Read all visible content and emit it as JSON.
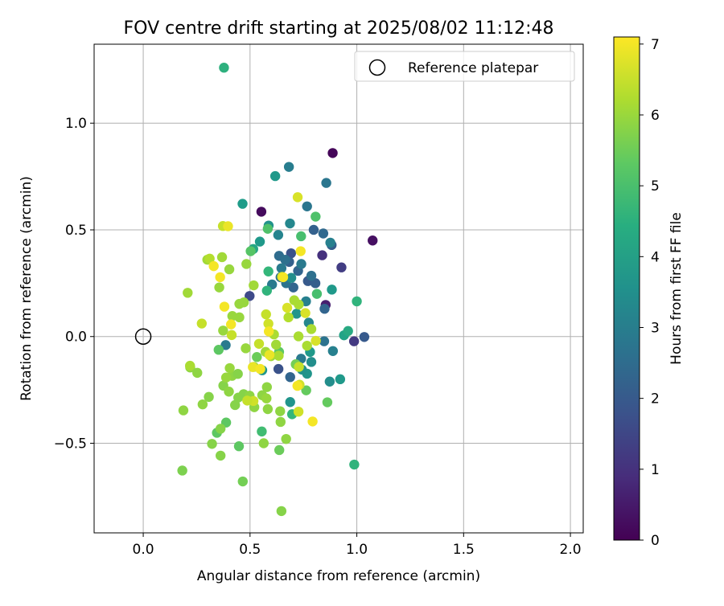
{
  "chart_data": {
    "type": "scatter",
    "title": "FOV centre drift starting at 2025/08/02 11:12:48",
    "xlabel": "Angular distance from reference (arcmin)",
    "ylabel": "Rotation from reference (arcmin)",
    "xlim": [
      -0.23,
      2.06
    ],
    "ylim": [
      -0.92,
      1.37
    ],
    "xticks": [
      0.0,
      0.5,
      1.0,
      1.5,
      2.0
    ],
    "xtick_labels": [
      "0.0",
      "0.5",
      "1.0",
      "1.5",
      "2.0"
    ],
    "yticks": [
      -0.5,
      0.0,
      0.5,
      1.0
    ],
    "ytick_labels": [
      "−0.5",
      "0.0",
      "0.5",
      "1.0"
    ],
    "grid": true,
    "legend": {
      "label": "Reference platepar",
      "placement": "top-right"
    },
    "reference_point": {
      "x": 0.0,
      "y": 0.0
    },
    "colorbar": {
      "label": "Hours from first FF file",
      "colormap": "viridis",
      "range": [
        0,
        7.1
      ],
      "ticks": [
        0,
        1,
        2,
        3,
        4,
        5,
        6,
        7
      ],
      "tick_labels": [
        "0",
        "1",
        "2",
        "3",
        "4",
        "5",
        "6",
        "7"
      ]
    },
    "points": [
      [
        0.378,
        1.26,
        4.5
      ],
      [
        0.887,
        0.86,
        0.1
      ],
      [
        0.553,
        0.585,
        0.2
      ],
      [
        1.074,
        0.45,
        0.3
      ],
      [
        0.854,
        0.148,
        0.6
      ],
      [
        0.838,
        0.381,
        1.0
      ],
      [
        0.928,
        0.324,
        1.3
      ],
      [
        0.987,
        -0.022,
        1.2
      ],
      [
        0.498,
        0.19,
        1.6
      ],
      [
        0.633,
        -0.152,
        1.8
      ],
      [
        1.035,
        -0.002,
        2.0
      ],
      [
        0.692,
        0.39,
        1.8
      ],
      [
        0.771,
        0.26,
        2.0
      ],
      [
        0.806,
        0.25,
        2.1
      ],
      [
        0.882,
        0.429,
        2.1
      ],
      [
        0.849,
        0.13,
        2.3
      ],
      [
        0.843,
        0.483,
        2.4
      ],
      [
        0.798,
        0.5,
        2.2
      ],
      [
        0.725,
        0.308,
        2.3
      ],
      [
        0.683,
        0.35,
        2.2
      ],
      [
        0.636,
        0.378,
        2.5
      ],
      [
        0.643,
        0.278,
        2.6
      ],
      [
        0.688,
        -0.19,
        2.3
      ],
      [
        0.787,
        0.285,
        2.6
      ],
      [
        0.703,
        0.23,
        2.3
      ],
      [
        0.669,
        0.25,
        2.7
      ],
      [
        0.74,
        0.34,
        2.9
      ],
      [
        0.665,
        0.36,
        2.6
      ],
      [
        0.647,
        0.32,
        2.9
      ],
      [
        0.857,
        0.72,
        2.8
      ],
      [
        0.767,
        0.61,
        2.8
      ],
      [
        0.682,
        0.795,
        3.0
      ],
      [
        0.876,
        0.44,
        3.1
      ],
      [
        0.739,
        -0.104,
        2.9
      ],
      [
        0.888,
        -0.068,
        3.1
      ],
      [
        0.847,
        -0.022,
        2.7
      ],
      [
        0.603,
        0.244,
        2.9
      ],
      [
        0.632,
        0.476,
        3.2
      ],
      [
        0.687,
        0.53,
        3.3
      ],
      [
        0.762,
        0.165,
        3.1
      ],
      [
        0.775,
        0.065,
        3.3
      ],
      [
        0.693,
        0.275,
        3.5
      ],
      [
        0.873,
        -0.211,
        3.5
      ],
      [
        0.922,
        -0.2,
        3.8
      ],
      [
        0.787,
        -0.119,
        3.5
      ],
      [
        0.767,
        -0.174,
        3.7
      ],
      [
        0.587,
        0.52,
        3.6
      ],
      [
        0.546,
        0.445,
        3.8
      ],
      [
        0.465,
        0.622,
        3.9
      ],
      [
        0.618,
        0.752,
        3.8
      ],
      [
        0.386,
        -0.04,
        2.9
      ],
      [
        0.688,
        -0.307,
        3.7
      ],
      [
        0.883,
        0.22,
        3.8
      ],
      [
        0.743,
        -0.155,
        3.6
      ],
      [
        0.557,
        -0.158,
        3.7
      ],
      [
        0.718,
        0.107,
        3.7
      ],
      [
        0.781,
        -0.072,
        3.8
      ],
      [
        0.515,
        0.41,
        4.2
      ],
      [
        0.94,
        0.006,
        4.1
      ],
      [
        0.959,
        0.026,
        4.3
      ],
      [
        0.988,
        -0.6,
        4.6
      ],
      [
        1.0,
        0.165,
        4.6
      ],
      [
        0.586,
        0.305,
        4.7
      ],
      [
        0.579,
        0.215,
        4.6
      ],
      [
        0.697,
        -0.364,
        4.7
      ],
      [
        0.555,
        -0.445,
        4.9
      ],
      [
        0.739,
        0.47,
        5.0
      ],
      [
        0.807,
        0.562,
        5.1
      ],
      [
        0.503,
        0.4,
        5.2
      ],
      [
        0.813,
        0.2,
        5.0
      ],
      [
        0.353,
        -0.062,
        5.3
      ],
      [
        0.388,
        -0.403,
        5.3
      ],
      [
        0.345,
        -0.451,
        5.3
      ],
      [
        0.448,
        -0.514,
        5.3
      ],
      [
        0.637,
        -0.532,
        5.5
      ],
      [
        0.583,
        0.505,
        5.1
      ],
      [
        0.862,
        -0.308,
        5.4
      ],
      [
        0.763,
        -0.252,
        5.4
      ],
      [
        0.636,
        -0.072,
        5.3
      ],
      [
        0.532,
        -0.096,
        5.5
      ],
      [
        0.714,
        -0.13,
        5.6
      ],
      [
        0.466,
        -0.679,
        5.6
      ],
      [
        0.183,
        -0.628,
        5.7
      ],
      [
        0.647,
        -0.818,
        5.8
      ],
      [
        0.362,
        -0.558,
        5.8
      ],
      [
        0.322,
        -0.503,
        5.8
      ],
      [
        0.188,
        -0.346,
        5.9
      ],
      [
        0.362,
        -0.432,
        5.8
      ],
      [
        0.52,
        -0.331,
        5.9
      ],
      [
        0.583,
        -0.34,
        5.9
      ],
      [
        0.641,
        -0.35,
        5.9
      ],
      [
        0.643,
        -0.4,
        5.9
      ],
      [
        0.669,
        -0.48,
        5.9
      ],
      [
        0.564,
        -0.5,
        5.9
      ],
      [
        0.307,
        -0.283,
        5.8
      ],
      [
        0.278,
        -0.318,
        5.9
      ],
      [
        0.253,
        -0.17,
        5.9
      ],
      [
        0.22,
        -0.145,
        5.9
      ],
      [
        0.375,
        -0.23,
        5.8
      ],
      [
        0.416,
        -0.184,
        5.9
      ],
      [
        0.443,
        -0.175,
        5.8
      ],
      [
        0.445,
        -0.286,
        5.8
      ],
      [
        0.47,
        -0.27,
        5.8
      ],
      [
        0.43,
        -0.321,
        5.8
      ],
      [
        0.498,
        -0.277,
        5.9
      ],
      [
        0.557,
        -0.275,
        5.9
      ],
      [
        0.577,
        -0.29,
        6.0
      ],
      [
        0.579,
        -0.237,
        5.9
      ],
      [
        0.518,
        -0.142,
        6.0
      ],
      [
        0.48,
        -0.055,
        6.0
      ],
      [
        0.405,
        -0.148,
        6.0
      ],
      [
        0.388,
        -0.192,
        6.0
      ],
      [
        0.401,
        -0.258,
        5.9
      ],
      [
        0.417,
        0.096,
        6.0
      ],
      [
        0.45,
        0.09,
        6.0
      ],
      [
        0.45,
        0.153,
        6.0
      ],
      [
        0.471,
        0.16,
        6.0
      ],
      [
        0.374,
        0.028,
        6.0
      ],
      [
        0.3,
        0.36,
        6.1
      ],
      [
        0.356,
        0.23,
        6.0
      ],
      [
        0.403,
        0.315,
        6.0
      ],
      [
        0.369,
        0.372,
        6.1
      ],
      [
        0.483,
        0.34,
        6.0
      ],
      [
        0.517,
        0.24,
        6.1
      ],
      [
        0.573,
        -0.072,
        6.1
      ],
      [
        0.598,
        -0.092,
        6.1
      ],
      [
        0.634,
        -0.09,
        6.2
      ],
      [
        0.622,
        -0.038,
        6.1
      ],
      [
        0.612,
        0.01,
        6.2
      ],
      [
        0.727,
        0.001,
        6.2
      ],
      [
        0.68,
        0.09,
        6.3
      ],
      [
        0.707,
        0.17,
        6.2
      ],
      [
        0.728,
        0.15,
        6.2
      ],
      [
        0.767,
        -0.043,
        6.2
      ],
      [
        0.787,
        0.035,
        6.2
      ],
      [
        0.208,
        0.205,
        6.1
      ],
      [
        0.219,
        -0.137,
        6.2
      ],
      [
        0.274,
        0.061,
        6.5
      ],
      [
        0.311,
        0.365,
        6.3
      ],
      [
        0.373,
        0.518,
        6.5
      ],
      [
        0.542,
        -0.034,
        6.5
      ],
      [
        0.575,
        0.104,
        6.5
      ],
      [
        0.586,
        0.06,
        6.6
      ],
      [
        0.65,
        0.28,
        6.6
      ],
      [
        0.674,
        0.135,
        6.7
      ],
      [
        0.729,
        -0.142,
        6.5
      ],
      [
        0.732,
        -0.226,
        6.6
      ],
      [
        0.759,
        0.11,
        6.7
      ],
      [
        0.723,
        0.653,
        6.7
      ],
      [
        0.808,
        -0.02,
        6.7
      ],
      [
        0.591,
        -0.086,
        6.9
      ],
      [
        0.516,
        -0.302,
        6.6
      ],
      [
        0.33,
        0.33,
        7.0
      ],
      [
        0.36,
        0.278,
        7.0
      ],
      [
        0.38,
        0.14,
        7.0
      ],
      [
        0.411,
        0.057,
        7.0
      ],
      [
        0.397,
        0.517,
        6.9
      ],
      [
        0.513,
        -0.143,
        6.9
      ],
      [
        0.548,
        -0.152,
        7.0
      ],
      [
        0.588,
        0.024,
        7.0
      ],
      [
        0.655,
        0.278,
        7.0
      ],
      [
        0.727,
        -0.352,
        6.6
      ],
      [
        0.737,
        0.4,
        7.0
      ],
      [
        0.793,
        -0.398,
        7.0
      ],
      [
        0.722,
        -0.231,
        7.0
      ],
      [
        0.414,
        0.007,
        6.5
      ],
      [
        0.487,
        -0.3,
        6.5
      ]
    ]
  }
}
